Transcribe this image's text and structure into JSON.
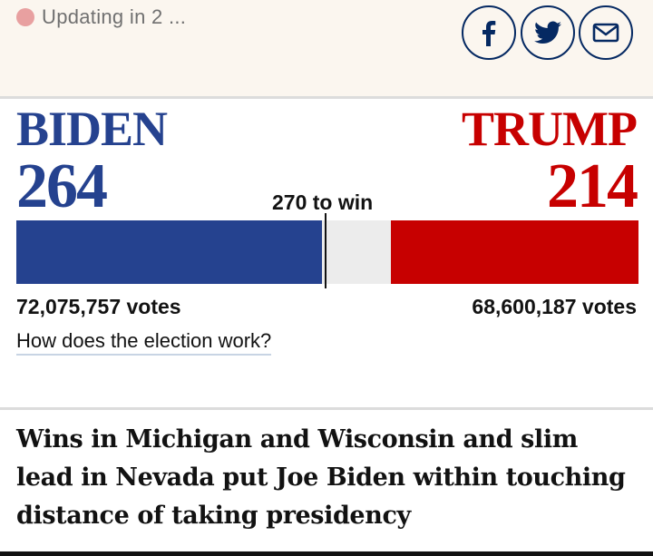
{
  "status": {
    "text": "Updating in 2 ...",
    "dot_color": "#e8a0a0"
  },
  "share": {
    "facebook_icon": "facebook-icon",
    "twitter_icon": "twitter-icon",
    "email_icon": "email-icon"
  },
  "results": {
    "to_win": "270 to win",
    "win_threshold": 270,
    "total_electoral_votes": 538,
    "biden": {
      "name": "BIDEN",
      "electoral_votes": "264",
      "popular_votes": "72,075,757 votes",
      "color": "#25428f"
    },
    "trump": {
      "name": "TRUMP",
      "electoral_votes": "214",
      "popular_votes": "68,600,187 votes",
      "color": "#c70000"
    },
    "explain_link": "How does the election work?"
  },
  "headline": "Wins in Michigan and Wisconsin and slim lead in Nevada put Joe Biden within touching distance of taking presidency"
}
